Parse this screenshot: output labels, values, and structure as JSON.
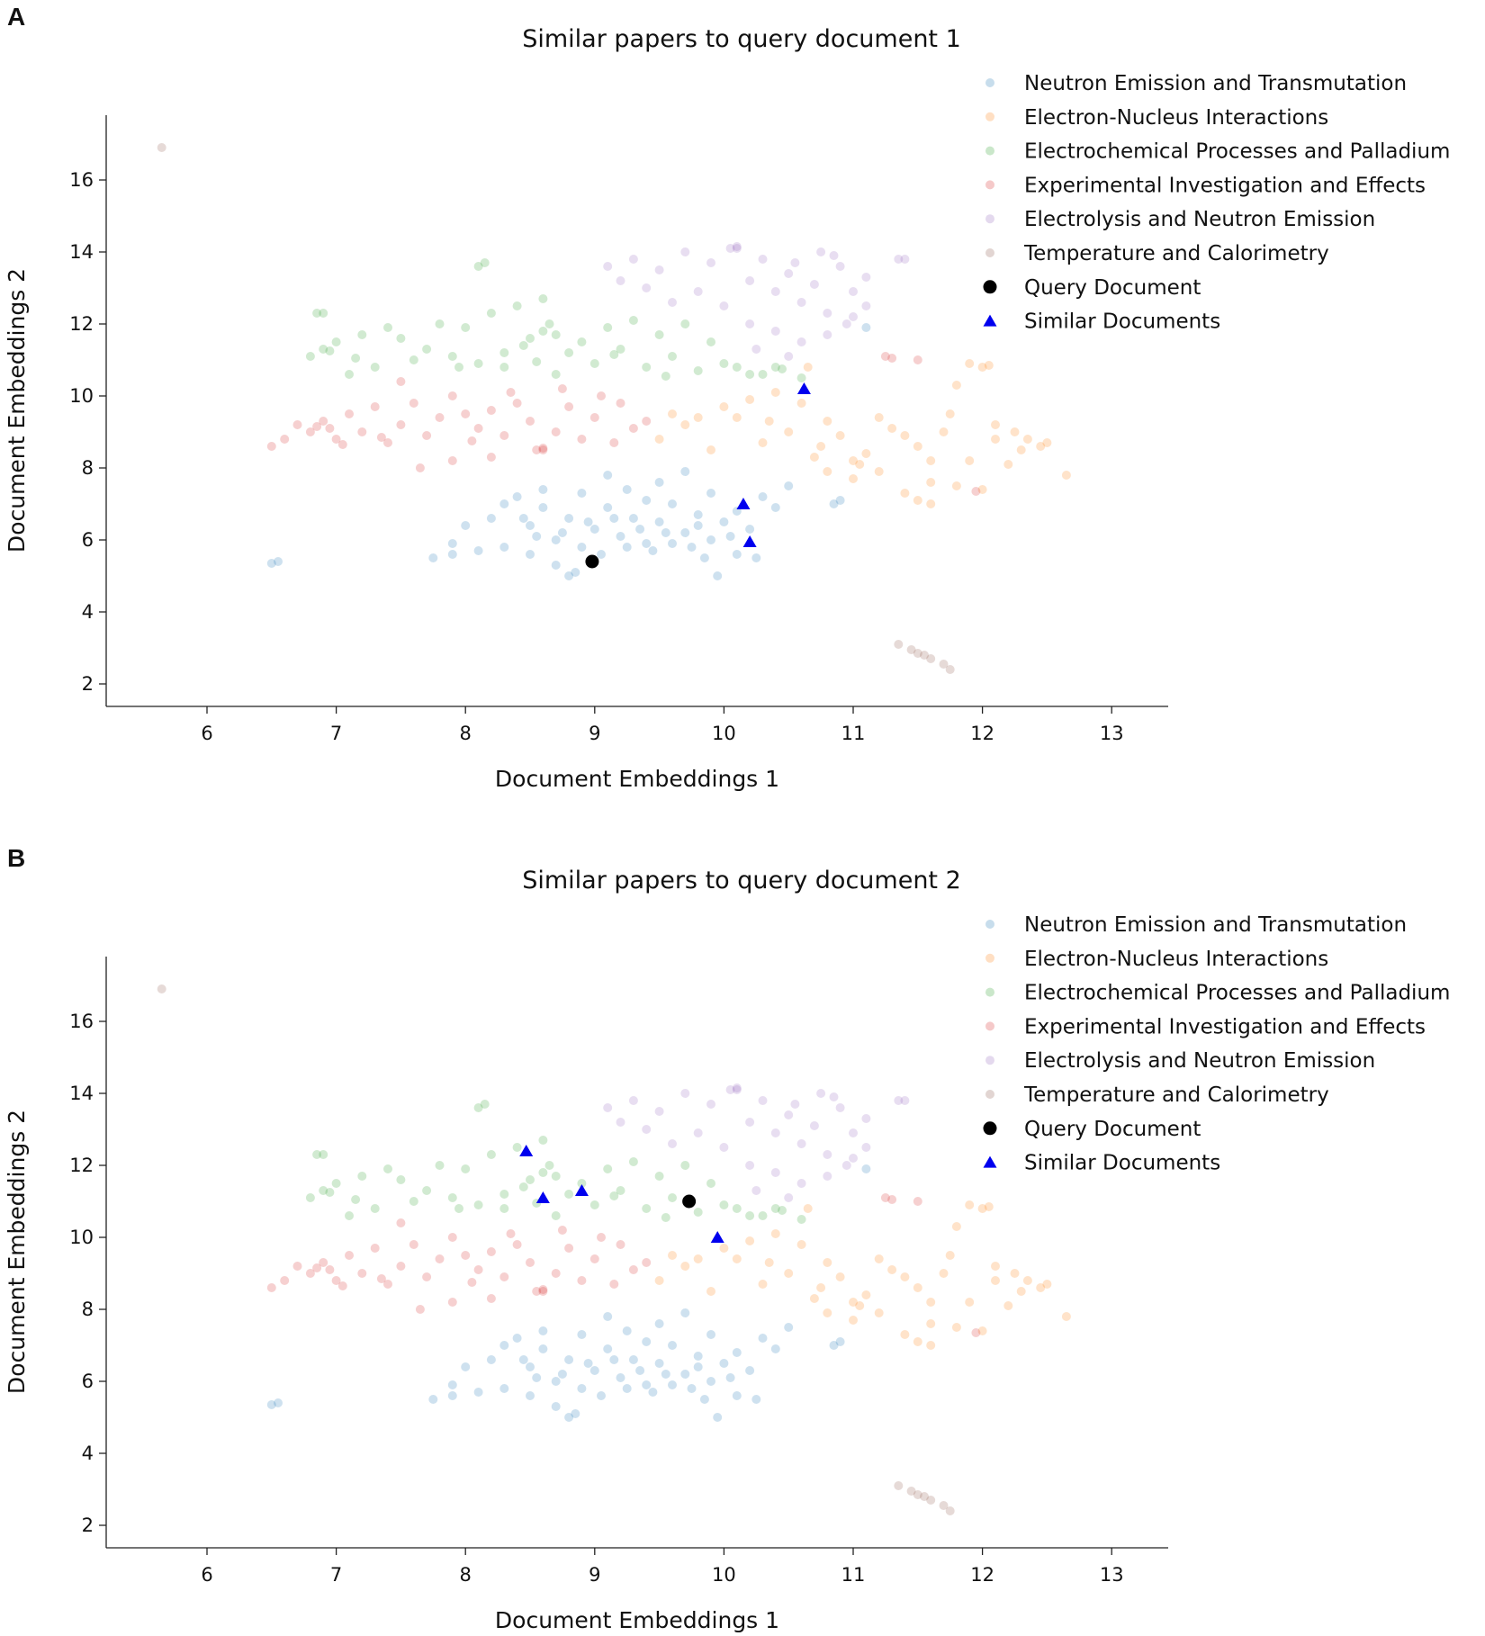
{
  "colors": {
    "neutron_transmutation": "#1f77b4",
    "electron_nucleus": "#ff7f0e",
    "electrochemical_palladium": "#2ca02c",
    "experimental_investigation": "#d62728",
    "electrolysis_neutron": "#9467bd",
    "temperature_calorimetry": "#8c564b",
    "query": "#000000",
    "similar": "#0000ee"
  },
  "chart_data": [
    {
      "panel_label": "A",
      "type": "scatter",
      "title": "Similar papers to query document 1",
      "xlabel": "Document Embeddings 1",
      "ylabel": "Document Embeddings 2",
      "xlim": [
        5.2,
        13.4
      ],
      "ylim": [
        1.4,
        17.8
      ],
      "xticks": [
        "6",
        "7",
        "8",
        "9",
        "10",
        "11",
        "12",
        "13"
      ],
      "yticks": [
        "2",
        "4",
        "6",
        "8",
        "10",
        "12",
        "14",
        "16"
      ],
      "grid": false,
      "legend_position": "top-right",
      "legend": [
        {
          "label": "Neutron Emission and Transmutation",
          "marker": "circle",
          "color_key": "neutron_transmutation"
        },
        {
          "label": "Electron-Nucleus Interactions",
          "marker": "circle",
          "color_key": "electron_nucleus"
        },
        {
          "label": "Electrochemical Processes and Palladium",
          "marker": "circle",
          "color_key": "electrochemical_palladium"
        },
        {
          "label": "Experimental Investigation and Effects",
          "marker": "circle",
          "color_key": "experimental_investigation"
        },
        {
          "label": "Electrolysis and Neutron Emission",
          "marker": "circle",
          "color_key": "electrolysis_neutron"
        },
        {
          "label": "Temperature and Calorimetry",
          "marker": "circle",
          "color_key": "temperature_calorimetry"
        },
        {
          "label": "Query Document",
          "marker": "dot",
          "color_key": "query"
        },
        {
          "label": "Similar Documents",
          "marker": "triangle",
          "color_key": "similar"
        }
      ],
      "query_point": {
        "x": 8.98,
        "y": 5.4
      },
      "similar_points": [
        {
          "x": 10.15,
          "y": 7.0
        },
        {
          "x": 10.2,
          "y": 5.95
        },
        {
          "x": 10.62,
          "y": 10.2
        }
      ]
    },
    {
      "panel_label": "B",
      "type": "scatter",
      "title": "Similar papers to query document 2",
      "xlabel": "Document Embeddings 1",
      "ylabel": "Document Embeddings 2",
      "xlim": [
        5.2,
        13.4
      ],
      "ylim": [
        1.4,
        17.8
      ],
      "xticks": [
        "6",
        "7",
        "8",
        "9",
        "10",
        "11",
        "12",
        "13"
      ],
      "yticks": [
        "2",
        "4",
        "6",
        "8",
        "10",
        "12",
        "14",
        "16"
      ],
      "grid": false,
      "legend_position": "top-right",
      "legend": [
        {
          "label": "Neutron Emission and Transmutation",
          "marker": "circle",
          "color_key": "neutron_transmutation"
        },
        {
          "label": "Electron-Nucleus Interactions",
          "marker": "circle",
          "color_key": "electron_nucleus"
        },
        {
          "label": "Electrochemical Processes and Palladium",
          "marker": "circle",
          "color_key": "electrochemical_palladium"
        },
        {
          "label": "Experimental Investigation and Effects",
          "marker": "circle",
          "color_key": "experimental_investigation"
        },
        {
          "label": "Electrolysis and Neutron Emission",
          "marker": "circle",
          "color_key": "electrolysis_neutron"
        },
        {
          "label": "Temperature and Calorimetry",
          "marker": "circle",
          "color_key": "temperature_calorimetry"
        },
        {
          "label": "Query Document",
          "marker": "dot",
          "color_key": "query"
        },
        {
          "label": "Similar Documents",
          "marker": "triangle",
          "color_key": "similar"
        }
      ],
      "query_point": {
        "x": 9.73,
        "y": 11.0
      },
      "similar_points": [
        {
          "x": 8.47,
          "y": 12.4
        },
        {
          "x": 8.6,
          "y": 11.1
        },
        {
          "x": 8.9,
          "y": 11.3
        },
        {
          "x": 9.95,
          "y": 10.0
        }
      ]
    }
  ],
  "clusters": [
    {
      "key": "neutron_transmutation",
      "points": [
        [
          8.3,
          7.0
        ],
        [
          8.5,
          6.4
        ],
        [
          8.6,
          6.9
        ],
        [
          8.7,
          6.0
        ],
        [
          8.8,
          6.6
        ],
        [
          8.9,
          5.8
        ],
        [
          9.0,
          6.3
        ],
        [
          9.1,
          6.9
        ],
        [
          9.2,
          6.1
        ],
        [
          9.3,
          6.6
        ],
        [
          9.4,
          5.9
        ],
        [
          9.5,
          6.5
        ],
        [
          9.6,
          7.0
        ],
        [
          9.7,
          6.2
        ],
        [
          9.8,
          6.7
        ],
        [
          9.9,
          6.0
        ],
        [
          10.0,
          6.5
        ],
        [
          10.1,
          6.8
        ],
        [
          10.2,
          6.3
        ],
        [
          10.3,
          7.2
        ],
        [
          9.5,
          7.6
        ],
        [
          9.7,
          7.9
        ],
        [
          9.9,
          7.3
        ],
        [
          9.1,
          7.8
        ],
        [
          8.9,
          7.3
        ],
        [
          8.6,
          7.4
        ],
        [
          8.4,
          7.2
        ],
        [
          8.2,
          6.6
        ],
        [
          8.0,
          6.4
        ],
        [
          7.9,
          5.9
        ],
        [
          7.75,
          5.5
        ],
        [
          7.9,
          5.6
        ],
        [
          8.1,
          5.7
        ],
        [
          8.3,
          5.8
        ],
        [
          8.5,
          5.6
        ],
        [
          8.7,
          5.3
        ],
        [
          8.8,
          5.0
        ],
        [
          8.85,
          5.1
        ],
        [
          9.05,
          5.6
        ],
        [
          9.25,
          5.8
        ],
        [
          9.45,
          5.7
        ],
        [
          9.6,
          5.9
        ],
        [
          9.75,
          5.8
        ],
        [
          9.85,
          5.5
        ],
        [
          9.95,
          5.0
        ],
        [
          10.1,
          5.6
        ],
        [
          10.25,
          5.5
        ],
        [
          10.4,
          6.9
        ],
        [
          10.5,
          7.5
        ],
        [
          10.85,
          7.0
        ],
        [
          10.9,
          7.1
        ],
        [
          11.1,
          11.9
        ],
        [
          6.5,
          5.35
        ],
        [
          6.55,
          5.4
        ],
        [
          9.4,
          7.1
        ],
        [
          8.95,
          6.5
        ],
        [
          9.35,
          6.3
        ],
        [
          9.55,
          6.2
        ],
        [
          9.15,
          6.6
        ],
        [
          8.75,
          6.2
        ],
        [
          8.55,
          6.1
        ],
        [
          9.8,
          6.4
        ],
        [
          10.05,
          6.1
        ],
        [
          9.25,
          7.4
        ],
        [
          8.45,
          6.6
        ]
      ]
    },
    {
      "key": "electron_nucleus",
      "points": [
        [
          9.5,
          8.8
        ],
        [
          9.7,
          9.2
        ],
        [
          9.9,
          8.5
        ],
        [
          10.1,
          9.4
        ],
        [
          10.3,
          8.7
        ],
        [
          10.5,
          9.0
        ],
        [
          10.7,
          8.3
        ],
        [
          10.9,
          8.9
        ],
        [
          11.1,
          8.4
        ],
        [
          11.3,
          9.1
        ],
        [
          11.5,
          8.6
        ],
        [
          11.7,
          9.0
        ],
        [
          11.9,
          8.2
        ],
        [
          12.1,
          8.8
        ],
        [
          12.3,
          8.5
        ],
        [
          12.5,
          8.7
        ],
        [
          12.65,
          7.8
        ],
        [
          11.0,
          7.7
        ],
        [
          11.2,
          7.9
        ],
        [
          11.4,
          7.3
        ],
        [
          11.6,
          7.6
        ],
        [
          11.8,
          7.5
        ],
        [
          12.0,
          7.4
        ],
        [
          10.6,
          9.8
        ],
        [
          10.4,
          10.1
        ],
        [
          10.2,
          9.9
        ],
        [
          10.0,
          9.7
        ],
        [
          10.65,
          10.8
        ],
        [
          11.8,
          10.3
        ],
        [
          11.9,
          10.9
        ],
        [
          12.0,
          10.8
        ],
        [
          12.05,
          10.85
        ],
        [
          11.5,
          7.1
        ],
        [
          11.6,
          7.0
        ],
        [
          10.8,
          7.9
        ],
        [
          11.0,
          8.2
        ],
        [
          12.2,
          8.1
        ],
        [
          12.35,
          8.8
        ],
        [
          12.45,
          8.6
        ],
        [
          9.8,
          9.4
        ],
        [
          10.8,
          9.3
        ],
        [
          11.2,
          9.4
        ],
        [
          11.4,
          8.9
        ],
        [
          11.6,
          8.2
        ],
        [
          11.75,
          9.5
        ],
        [
          12.1,
          9.2
        ],
        [
          12.25,
          9.0
        ],
        [
          9.6,
          9.5
        ],
        [
          10.35,
          9.3
        ],
        [
          10.75,
          8.6
        ],
        [
          11.05,
          8.1
        ]
      ]
    },
    {
      "key": "electrochemical_palladium",
      "points": [
        [
          6.8,
          11.1
        ],
        [
          6.9,
          11.3
        ],
        [
          7.0,
          11.5
        ],
        [
          7.2,
          11.7
        ],
        [
          7.4,
          11.9
        ],
        [
          6.85,
          12.3
        ],
        [
          6.9,
          12.3
        ],
        [
          7.5,
          11.6
        ],
        [
          7.7,
          11.3
        ],
        [
          7.9,
          11.1
        ],
        [
          8.1,
          10.9
        ],
        [
          8.3,
          11.2
        ],
        [
          8.5,
          11.6
        ],
        [
          8.6,
          11.8
        ],
        [
          8.7,
          11.7
        ],
        [
          8.8,
          11.2
        ],
        [
          8.9,
          11.5
        ],
        [
          9.0,
          10.9
        ],
        [
          9.2,
          11.3
        ],
        [
          9.4,
          10.8
        ],
        [
          9.6,
          11.1
        ],
        [
          9.8,
          10.7
        ],
        [
          10.0,
          10.9
        ],
        [
          10.2,
          10.6
        ],
        [
          10.4,
          10.8
        ],
        [
          10.6,
          10.5
        ],
        [
          8.0,
          11.9
        ],
        [
          8.2,
          12.3
        ],
        [
          8.4,
          12.5
        ],
        [
          8.6,
          12.7
        ],
        [
          8.15,
          13.7
        ],
        [
          8.1,
          13.6
        ],
        [
          7.8,
          12.0
        ],
        [
          7.6,
          11.0
        ],
        [
          7.3,
          10.8
        ],
        [
          7.1,
          10.6
        ],
        [
          8.3,
          10.8
        ],
        [
          8.7,
          10.6
        ],
        [
          9.1,
          11.9
        ],
        [
          9.3,
          12.1
        ],
        [
          9.5,
          11.7
        ],
        [
          9.7,
          12.0
        ],
        [
          9.9,
          11.5
        ],
        [
          10.1,
          10.8
        ],
        [
          10.3,
          10.6
        ],
        [
          7.95,
          10.8
        ],
        [
          8.45,
          11.4
        ],
        [
          8.65,
          12.0
        ],
        [
          6.95,
          11.25
        ],
        [
          7.15,
          11.05
        ],
        [
          8.55,
          10.95
        ],
        [
          9.15,
          11.15
        ],
        [
          9.55,
          10.55
        ],
        [
          10.45,
          10.75
        ]
      ]
    },
    {
      "key": "experimental_investigation",
      "points": [
        [
          6.5,
          8.6
        ],
        [
          6.6,
          8.8
        ],
        [
          6.7,
          9.2
        ],
        [
          6.8,
          9.0
        ],
        [
          6.9,
          9.3
        ],
        [
          7.0,
          8.8
        ],
        [
          7.1,
          9.5
        ],
        [
          7.2,
          9.0
        ],
        [
          7.3,
          9.7
        ],
        [
          7.4,
          8.7
        ],
        [
          7.5,
          9.2
        ],
        [
          7.6,
          9.8
        ],
        [
          7.7,
          8.9
        ],
        [
          7.8,
          9.4
        ],
        [
          7.9,
          10.0
        ],
        [
          8.0,
          9.5
        ],
        [
          8.1,
          9.1
        ],
        [
          8.2,
          9.6
        ],
        [
          8.3,
          8.9
        ],
        [
          8.4,
          9.8
        ],
        [
          8.5,
          9.3
        ],
        [
          8.6,
          8.5
        ],
        [
          8.7,
          9.0
        ],
        [
          8.8,
          9.7
        ],
        [
          8.9,
          8.8
        ],
        [
          9.0,
          9.4
        ],
        [
          9.2,
          9.8
        ],
        [
          9.4,
          9.3
        ],
        [
          7.5,
          10.4
        ],
        [
          7.9,
          8.2
        ],
        [
          8.55,
          8.5
        ],
        [
          8.6,
          8.55
        ],
        [
          6.85,
          9.15
        ],
        [
          6.95,
          9.1
        ],
        [
          7.65,
          8.0
        ],
        [
          8.2,
          8.3
        ],
        [
          11.25,
          11.1
        ],
        [
          11.3,
          11.05
        ],
        [
          11.5,
          11.0
        ],
        [
          11.95,
          7.35
        ],
        [
          9.3,
          9.1
        ],
        [
          9.15,
          8.7
        ],
        [
          7.35,
          8.85
        ],
        [
          7.05,
          8.65
        ],
        [
          8.05,
          8.75
        ],
        [
          8.35,
          10.1
        ],
        [
          8.75,
          10.2
        ],
        [
          9.05,
          10.0
        ]
      ]
    },
    {
      "key": "electrolysis_neutron",
      "points": [
        [
          9.1,
          13.6
        ],
        [
          9.3,
          13.8
        ],
        [
          9.5,
          13.5
        ],
        [
          9.7,
          14.0
        ],
        [
          9.9,
          13.7
        ],
        [
          10.1,
          14.1
        ],
        [
          10.2,
          13.2
        ],
        [
          10.3,
          13.8
        ],
        [
          10.4,
          12.9
        ],
        [
          10.5,
          13.4
        ],
        [
          10.6,
          12.6
        ],
        [
          10.7,
          13.1
        ],
        [
          10.8,
          12.3
        ],
        [
          10.9,
          13.6
        ],
        [
          11.0,
          12.9
        ],
        [
          11.1,
          13.3
        ],
        [
          10.0,
          12.5
        ],
        [
          10.2,
          12.0
        ],
        [
          10.4,
          11.8
        ],
        [
          10.6,
          11.5
        ],
        [
          10.8,
          11.7
        ],
        [
          11.0,
          12.2
        ],
        [
          11.1,
          12.5
        ],
        [
          11.35,
          13.8
        ],
        [
          11.4,
          13.8
        ],
        [
          10.1,
          14.15
        ],
        [
          10.05,
          14.1
        ],
        [
          10.75,
          14.0
        ],
        [
          9.4,
          13.0
        ],
        [
          9.6,
          12.6
        ],
        [
          9.8,
          12.9
        ],
        [
          10.55,
          13.7
        ],
        [
          10.95,
          12.0
        ],
        [
          10.25,
          11.3
        ],
        [
          10.5,
          11.1
        ],
        [
          9.2,
          13.2
        ],
        [
          10.85,
          13.9
        ]
      ]
    },
    {
      "key": "temperature_calorimetry",
      "points": [
        [
          11.35,
          3.1
        ],
        [
          11.45,
          2.95
        ],
        [
          11.5,
          2.85
        ],
        [
          11.55,
          2.8
        ],
        [
          11.6,
          2.7
        ],
        [
          11.7,
          2.55
        ],
        [
          11.75,
          2.4
        ],
        [
          5.65,
          16.9
        ]
      ]
    }
  ]
}
